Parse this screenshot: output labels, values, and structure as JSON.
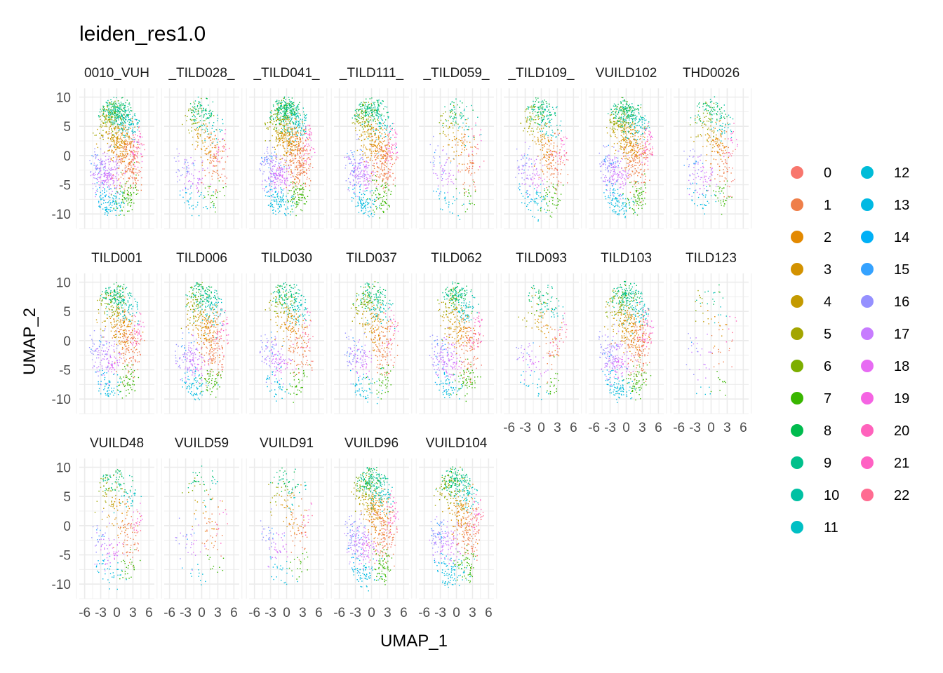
{
  "chart_data": {
    "type": "scatter",
    "title": "leiden_res1.0",
    "xlabel": "UMAP_1",
    "ylabel": "UMAP_2",
    "xlim": [
      -7,
      7
    ],
    "ylim": [
      -12.5,
      11.5
    ],
    "x_ticks": [
      -6,
      -3,
      0,
      3,
      6
    ],
    "y_ticks": [
      10,
      5,
      0,
      -5,
      -10
    ],
    "x_tick_labels": [
      "-6",
      "-3",
      "0",
      "3",
      "6"
    ],
    "y_tick_labels": [
      "10",
      "5",
      "0",
      "-5",
      "-10"
    ],
    "grid": true,
    "legend_position": "right",
    "legend": {
      "labels": [
        "0",
        "1",
        "2",
        "3",
        "4",
        "5",
        "6",
        "7",
        "8",
        "9",
        "10",
        "11",
        "12",
        "13",
        "14",
        "15",
        "16",
        "17",
        "18",
        "19",
        "20",
        "21",
        "22"
      ],
      "colors": [
        "#F8766D",
        "#EF7F49",
        "#E38900",
        "#D39200",
        "#C49A00",
        "#A3A500",
        "#7CAE00",
        "#39B600",
        "#00BB4E",
        "#00C08B",
        "#00C1A3",
        "#00BFC4",
        "#00BCD8",
        "#00B9E3",
        "#00B0F6",
        "#35A2FF",
        "#9590FF",
        "#C77CFF",
        "#E76BF3",
        "#F564E3",
        "#FF62BC",
        "#FF61C3",
        "#FF6C91"
      ]
    },
    "panels": [
      {
        "label": "0010_VUH",
        "density": 1.0
      },
      {
        "label": "_TILD028_",
        "density": 0.35
      },
      {
        "label": "_TILD041_",
        "density": 1.0
      },
      {
        "label": "_TILD111_",
        "density": 0.75
      },
      {
        "label": "_TILD059_",
        "density": 0.25
      },
      {
        "label": "_TILD109_",
        "density": 0.45
      },
      {
        "label": "VUILD102",
        "density": 0.8
      },
      {
        "label": "THD0026",
        "density": 0.35
      },
      {
        "label": "TILD001",
        "density": 0.6
      },
      {
        "label": "TILD006",
        "density": 0.6
      },
      {
        "label": "TILD030",
        "density": 0.45
      },
      {
        "label": "TILD037",
        "density": 0.45
      },
      {
        "label": "TILD062",
        "density": 0.55
      },
      {
        "label": "TILD093",
        "density": 0.2
      },
      {
        "label": "TILD103",
        "density": 0.7
      },
      {
        "label": "TILD123",
        "density": 0.08
      },
      {
        "label": "VUILD48",
        "density": 0.3
      },
      {
        "label": "VUILD59",
        "density": 0.12
      },
      {
        "label": "VUILD91",
        "density": 0.2
      },
      {
        "label": "VUILD96",
        "density": 0.7
      },
      {
        "label": "VUILD104",
        "density": 0.6
      }
    ]
  }
}
